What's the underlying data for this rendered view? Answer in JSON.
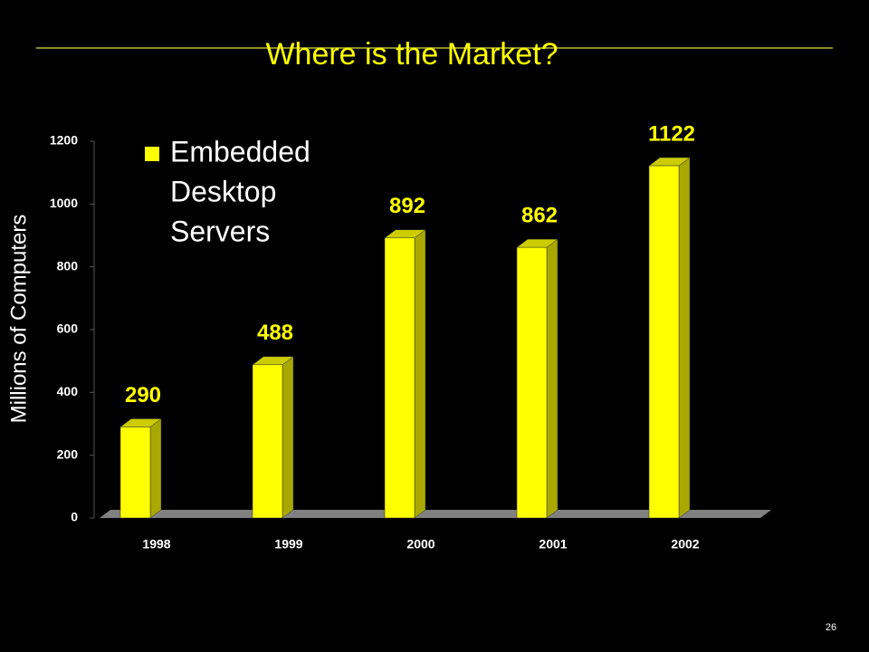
{
  "chart_data": {
    "type": "bar3d",
    "title": "Where is the Market?",
    "y_label": "Millions of Computers",
    "categories": [
      "1998",
      "1999",
      "2000",
      "2001",
      "2002"
    ],
    "series": [
      {
        "name": "Embedded",
        "color": "#ffff00",
        "values": [
          290,
          488,
          892,
          862,
          1122
        ]
      }
    ],
    "legend": [
      {
        "name": "Embedded",
        "color": "#ffff00"
      },
      {
        "name": "Desktop",
        "color": "#000000"
      },
      {
        "name": "Servers",
        "color": "#000000"
      }
    ],
    "ylim": [
      0,
      1200
    ],
    "yticks": [
      0,
      200,
      400,
      600,
      800,
      1000,
      1200
    ]
  },
  "slide_number": "26"
}
